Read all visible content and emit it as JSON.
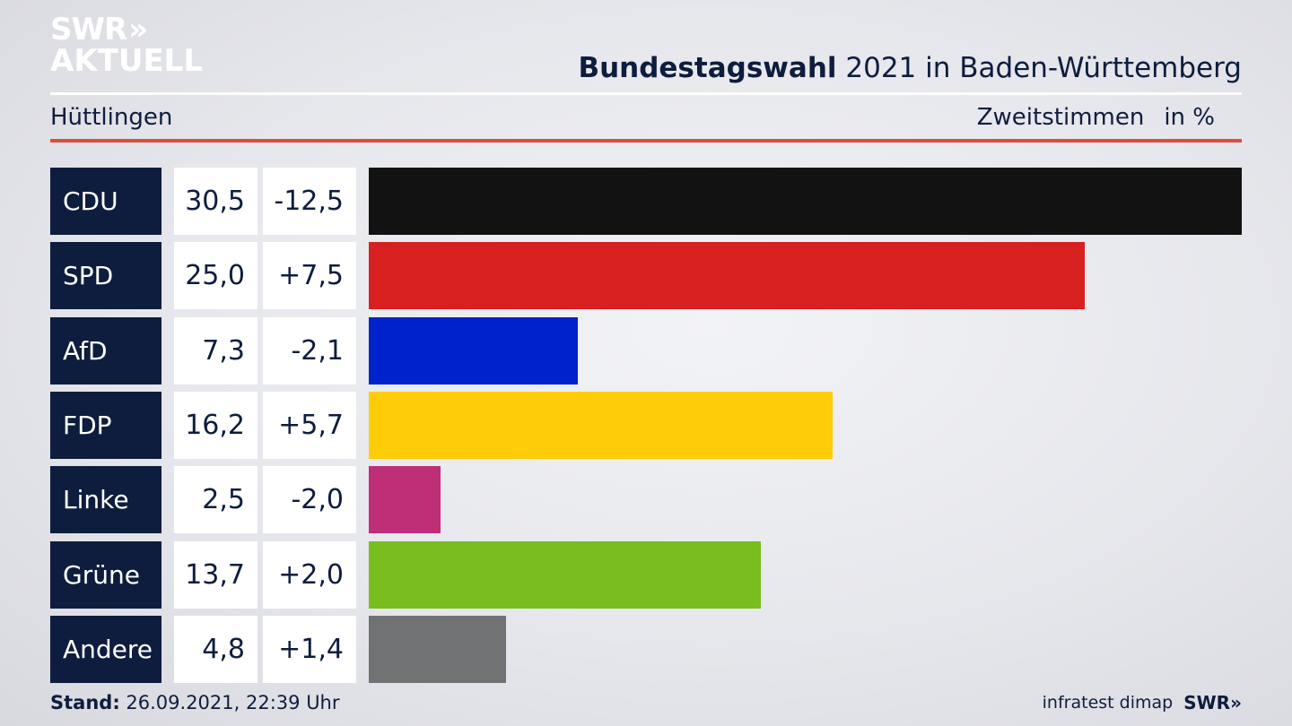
{
  "brand": {
    "line1": "SWR",
    "chevrons": "»",
    "line2": "AKTUELL"
  },
  "header": {
    "title_bold": "Bundestagswahl",
    "title_rest": "2021 in Baden-Württemberg"
  },
  "sub": {
    "location": "Hüttlingen",
    "metric": "Zweitstimmen",
    "unit": "in %"
  },
  "footer": {
    "stand_label": "Stand:",
    "stand_value": "26.09.2021, 22:39 Uhr",
    "source": "infratest dimap",
    "logo": "SWR»"
  },
  "chart_data": {
    "type": "bar",
    "orientation": "horizontal",
    "categories": [
      "CDU",
      "SPD",
      "AfD",
      "FDP",
      "Linke",
      "Grüne",
      "Andere"
    ],
    "values": [
      30.5,
      25.0,
      7.3,
      16.2,
      2.5,
      13.7,
      4.8
    ],
    "value_labels": [
      "30,5",
      "25,0",
      "7,3",
      "16,2",
      "2,5",
      "13,7",
      "4,8"
    ],
    "changes": [
      -12.5,
      7.5,
      -2.1,
      5.7,
      -2.0,
      2.0,
      1.4
    ],
    "change_labels": [
      "-12,5",
      "+7,5",
      "-2,1",
      "+5,7",
      "-2,0",
      "+2,0",
      "+1,4"
    ],
    "colors": [
      "#121212",
      "#d92020",
      "#0022cc",
      "#ffcc0a",
      "#be2f77",
      "#7abd1e",
      "#717274"
    ],
    "xlim": [
      0,
      30.5
    ]
  }
}
